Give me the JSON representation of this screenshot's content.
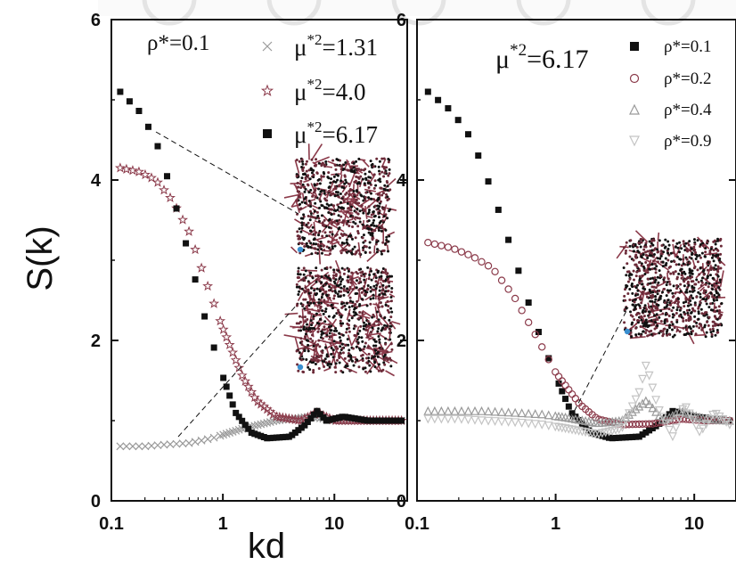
{
  "figure": {
    "ylabel": "S(k)",
    "xlabel": "kd",
    "colors": {
      "black": "#111111",
      "maroon": "#8b3a4a",
      "gray": "#9a9a9a",
      "lightgray": "#c4c4c4",
      "watermark": "#e4e4e4"
    }
  },
  "chart_data": [
    {
      "type": "scatter",
      "panel": "left",
      "xscale": "log",
      "xlim": [
        0.1,
        45
      ],
      "ylim": [
        0,
        6
      ],
      "xticks": [
        "0.1",
        "1",
        "10"
      ],
      "yticks": [
        "0",
        "2",
        "4",
        "6"
      ],
      "annotation": "ρ*=0.1",
      "legend": {
        "placement": "top-right"
      },
      "series": [
        {
          "name": "μ*2=1.31",
          "label_main": "μ",
          "label_sup": "*2",
          "label_tail": "=1.31",
          "marker": "cross",
          "color": "#9a9a9a",
          "points": [
            [
              0.12,
              0.68
            ],
            [
              0.2,
              0.68
            ],
            [
              0.3,
              0.7
            ],
            [
              0.5,
              0.72
            ],
            [
              0.8,
              0.78
            ],
            [
              1.5,
              0.9
            ],
            [
              3,
              1.0
            ],
            [
              6,
              1.05
            ],
            [
              10,
              1.0
            ],
            [
              20,
              1.0
            ],
            [
              40,
              1.0
            ]
          ]
        },
        {
          "name": "μ*2=4.0",
          "label_main": "μ",
          "label_sup": "*2",
          "label_tail": "=4.0",
          "marker": "star",
          "color": "#8b3a4a",
          "points": [
            [
              0.12,
              4.15
            ],
            [
              0.18,
              4.1
            ],
            [
              0.25,
              4.0
            ],
            [
              0.35,
              3.75
            ],
            [
              0.5,
              3.35
            ],
            [
              0.7,
              2.75
            ],
            [
              1,
              2.15
            ],
            [
              1.5,
              1.55
            ],
            [
              2,
              1.25
            ],
            [
              3,
              1.05
            ],
            [
              5,
              1.0
            ],
            [
              7,
              1.1
            ],
            [
              10,
              1.0
            ],
            [
              20,
              1.0
            ],
            [
              40,
              1.0
            ]
          ]
        },
        {
          "name": "μ*2=6.17",
          "label_main": "μ",
          "label_sup": "*2",
          "label_tail": "=6.17",
          "marker": "square",
          "color": "#111111",
          "points": [
            [
              0.12,
              5.1
            ],
            [
              0.18,
              4.85
            ],
            [
              0.25,
              4.5
            ],
            [
              0.35,
              3.85
            ],
            [
              0.5,
              3.05
            ],
            [
              0.7,
              2.25
            ],
            [
              1,
              1.55
            ],
            [
              1.3,
              1.1
            ],
            [
              1.8,
              0.85
            ],
            [
              2.5,
              0.78
            ],
            [
              4,
              0.8
            ],
            [
              5.5,
              0.95
            ],
            [
              7,
              1.12
            ],
            [
              8.5,
              1.0
            ],
            [
              12,
              1.05
            ],
            [
              20,
              1.0
            ],
            [
              40,
              1.0
            ]
          ]
        }
      ]
    },
    {
      "type": "scatter",
      "panel": "right",
      "xscale": "log",
      "xlim": [
        0.1,
        20
      ],
      "ylim": [
        0,
        6
      ],
      "xticks": [
        "0.1",
        "1",
        "10"
      ],
      "yticks": [
        "0",
        "2",
        "4",
        "6"
      ],
      "annotation_main": "μ",
      "annotation_sup": "*2",
      "annotation_tail": "=6.17",
      "legend": {
        "placement": "top-right"
      },
      "series": [
        {
          "name": "ρ*=0.1",
          "marker": "square",
          "color": "#111111",
          "points": [
            [
              0.12,
              5.1
            ],
            [
              0.18,
              4.85
            ],
            [
              0.25,
              4.5
            ],
            [
              0.35,
              3.85
            ],
            [
              0.5,
              3.05
            ],
            [
              0.7,
              2.25
            ],
            [
              1,
              1.55
            ],
            [
              1.3,
              1.1
            ],
            [
              1.8,
              0.85
            ],
            [
              2.5,
              0.78
            ],
            [
              4,
              0.8
            ],
            [
              5.5,
              0.95
            ],
            [
              7,
              1.12
            ],
            [
              10,
              1.05
            ],
            [
              18,
              1.0
            ]
          ]
        },
        {
          "name": "ρ*=0.2",
          "marker": "circle",
          "color": "#8b3a4a",
          "points": [
            [
              0.12,
              3.22
            ],
            [
              0.18,
              3.15
            ],
            [
              0.25,
              3.05
            ],
            [
              0.35,
              2.9
            ],
            [
              0.5,
              2.55
            ],
            [
              0.7,
              2.1
            ],
            [
              1,
              1.6
            ],
            [
              1.5,
              1.2
            ],
            [
              2,
              1.02
            ],
            [
              3,
              0.95
            ],
            [
              5,
              0.96
            ],
            [
              8,
              1.02
            ],
            [
              12,
              1.0
            ],
            [
              18,
              1.0
            ]
          ]
        },
        {
          "name": "ρ*=0.4",
          "marker": "triangle-up",
          "color": "#9a9a9a",
          "points": [
            [
              0.12,
              1.12
            ],
            [
              0.2,
              1.12
            ],
            [
              0.3,
              1.12
            ],
            [
              0.5,
              1.1
            ],
            [
              0.8,
              1.08
            ],
            [
              1.2,
              1.04
            ],
            [
              2,
              0.97
            ],
            [
              3,
              1.0
            ],
            [
              4.5,
              1.25
            ],
            [
              6,
              1.0
            ],
            [
              8,
              1.12
            ],
            [
              12,
              1.02
            ],
            [
              18,
              1.0
            ]
          ]
        },
        {
          "name": "ρ*=0.9",
          "marker": "triangle-down",
          "color": "#c4c4c4",
          "points": [
            [
              0.12,
              1.02
            ],
            [
              0.2,
              1.02
            ],
            [
              0.3,
              1.0
            ],
            [
              0.5,
              0.98
            ],
            [
              0.8,
              0.95
            ],
            [
              1.2,
              0.9
            ],
            [
              2,
              0.83
            ],
            [
              3,
              0.9
            ],
            [
              4,
              1.35
            ],
            [
              4.5,
              1.7
            ],
            [
              5.5,
              1.15
            ],
            [
              7,
              0.8
            ],
            [
              8.5,
              1.2
            ],
            [
              11,
              0.85
            ],
            [
              14,
              1.1
            ],
            [
              18,
              0.95
            ]
          ]
        }
      ]
    }
  ]
}
